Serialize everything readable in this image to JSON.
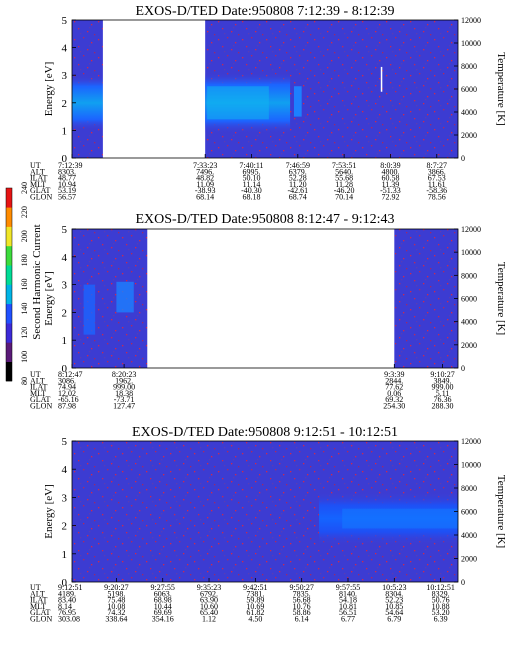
{
  "chart_data": [
    {
      "type": "heatmap",
      "title": "EXOS-D/TED   Date:950808   7:12:39 - 8:12:39",
      "ylabel": "Energy [eV]",
      "y2label": "Temperature [K]",
      "ylim": [
        0,
        5
      ],
      "y2lim": [
        0,
        12000
      ],
      "yticks": [
        "0",
        "1",
        "2",
        "3",
        "4",
        "5"
      ],
      "y2ticks": [
        "0",
        "2000",
        "4000",
        "6000",
        "8000",
        "10000",
        "12000"
      ],
      "data_gap": [
        "7:12:39",
        "7:33:23"
      ],
      "meta_labels": [
        "UT",
        "ALT",
        "ILAT",
        "MLT",
        "GLAT",
        "GLON"
      ],
      "meta_columns": [
        {
          "pos": 0.0,
          "values": [
            "7:12:39",
            "8303.",
            "48.77",
            "10.94",
            "53.19",
            "56.57"
          ]
        },
        {
          "pos": 0.345,
          "values": [
            "7:33:23",
            "7496.",
            "48.82",
            "11.09",
            "-38.93",
            "68.14"
          ]
        },
        {
          "pos": 0.465,
          "values": [
            "7:40:11",
            "6995.",
            "50.10",
            "11.14",
            "-40.30",
            "68.18"
          ]
        },
        {
          "pos": 0.585,
          "values": [
            "7:46:59",
            "6379.",
            "52.28",
            "11.20",
            "-42.61",
            "68.74"
          ]
        },
        {
          "pos": 0.705,
          "values": [
            "7:53:51",
            "5640.",
            "55.68",
            "11.28",
            "-46.20",
            "70.14"
          ]
        },
        {
          "pos": 0.825,
          "values": [
            "8:0:39",
            "4800.",
            "60.58",
            "11.39",
            "-51.33",
            "72.92"
          ]
        },
        {
          "pos": 0.945,
          "values": [
            "8:7:27",
            "3866.",
            "67.53",
            "11.61",
            "-58.36",
            "78.56"
          ]
        }
      ]
    },
    {
      "type": "heatmap",
      "title": "EXOS-D/TED   Date:950808   8:12:47 - 9:12:43",
      "ylabel": "Energy [eV]",
      "y2label": "Temperature [K]",
      "ylim": [
        0,
        5
      ],
      "y2lim": [
        0,
        12000
      ],
      "yticks": [
        "0",
        "1",
        "2",
        "3",
        "4",
        "5"
      ],
      "y2ticks": [
        "0",
        "2000",
        "4000",
        "6000",
        "8000",
        "10000",
        "12000"
      ],
      "data_gap": [
        "8:20:23",
        "9:3:39"
      ],
      "meta_labels": [
        "UT",
        "ALT",
        "ILAT",
        "MLT",
        "GLAT",
        "GLON"
      ],
      "meta_columns": [
        {
          "pos": 0.0,
          "values": [
            "8:12:47",
            "3086.",
            "74.94",
            "12.02",
            "-65.16",
            "87.98"
          ]
        },
        {
          "pos": 0.135,
          "values": [
            "8:20:23",
            "1962.",
            "999.00",
            "18.38",
            "-73.71",
            "127.47"
          ]
        },
        {
          "pos": 0.835,
          "values": [
            "9:3:39",
            "2844.",
            "77.62",
            "0.06",
            "69.32",
            "254.30"
          ]
        },
        {
          "pos": 0.96,
          "values": [
            "9:10:27",
            "3849.",
            "999.00",
            "5.11",
            "76.36",
            "288.30"
          ]
        }
      ]
    },
    {
      "type": "heatmap",
      "title": "EXOS-D/TED   Date:950808  9:12:51 - 10:12:51",
      "ylabel": "Energy [eV]",
      "y2label": "Temperature [K]",
      "ylim": [
        0,
        5
      ],
      "y2lim": [
        0,
        12000
      ],
      "yticks": [
        "0",
        "1",
        "2",
        "3",
        "4",
        "5"
      ],
      "y2ticks": [
        "0",
        "2000",
        "4000",
        "6000",
        "8000",
        "10000",
        "12000"
      ],
      "meta_labels": [
        "UT",
        "ALT",
        "ILAT",
        "MLT",
        "GLAT",
        "GLON"
      ],
      "meta_columns": [
        {
          "pos": 0.0,
          "values": [
            "9:12:51",
            "4189.",
            "83.40",
            "8.14",
            "76.95",
            "303.08"
          ]
        },
        {
          "pos": 0.115,
          "values": [
            "9:20:27",
            "5198.",
            "75.48",
            "10.08",
            "74.32",
            "338.64"
          ]
        },
        {
          "pos": 0.235,
          "values": [
            "9:27:55",
            "6063.",
            "68.98",
            "10.44",
            "69.69",
            "354.16"
          ]
        },
        {
          "pos": 0.355,
          "values": [
            "9:35:23",
            "6792.",
            "63.90",
            "10.60",
            "65.40",
            "1.12"
          ]
        },
        {
          "pos": 0.475,
          "values": [
            "9:42:51",
            "7381.",
            "59.89",
            "10.69",
            "61.82",
            "4.50"
          ]
        },
        {
          "pos": 0.595,
          "values": [
            "9:50:27",
            "7835.",
            "56.68",
            "10.76",
            "58.86",
            "6.14"
          ]
        },
        {
          "pos": 0.715,
          "values": [
            "9:57:55",
            "8140.",
            "54.18",
            "10.81",
            "56.51",
            "6.77"
          ]
        },
        {
          "pos": 0.835,
          "values": [
            "10:5:23",
            "8304.",
            "52.23",
            "10.85",
            "54.64",
            "6.79"
          ]
        },
        {
          "pos": 0.955,
          "values": [
            "10:12:51",
            "8329.",
            "50.76",
            "10.88",
            "53.20",
            "6.39"
          ]
        }
      ]
    }
  ],
  "colorbar": {
    "label": "Second Harmonic Current",
    "ticks": [
      "80",
      "100",
      "120",
      "140",
      "160",
      "180",
      "200",
      "220",
      "240"
    ],
    "colors": [
      "#000000",
      "#5a1a78",
      "#3c2ad8",
      "#2050ff",
      "#00b4e6",
      "#00dc96",
      "#3cdc3c",
      "#f0e628",
      "#ff8c00",
      "#e61414"
    ]
  }
}
